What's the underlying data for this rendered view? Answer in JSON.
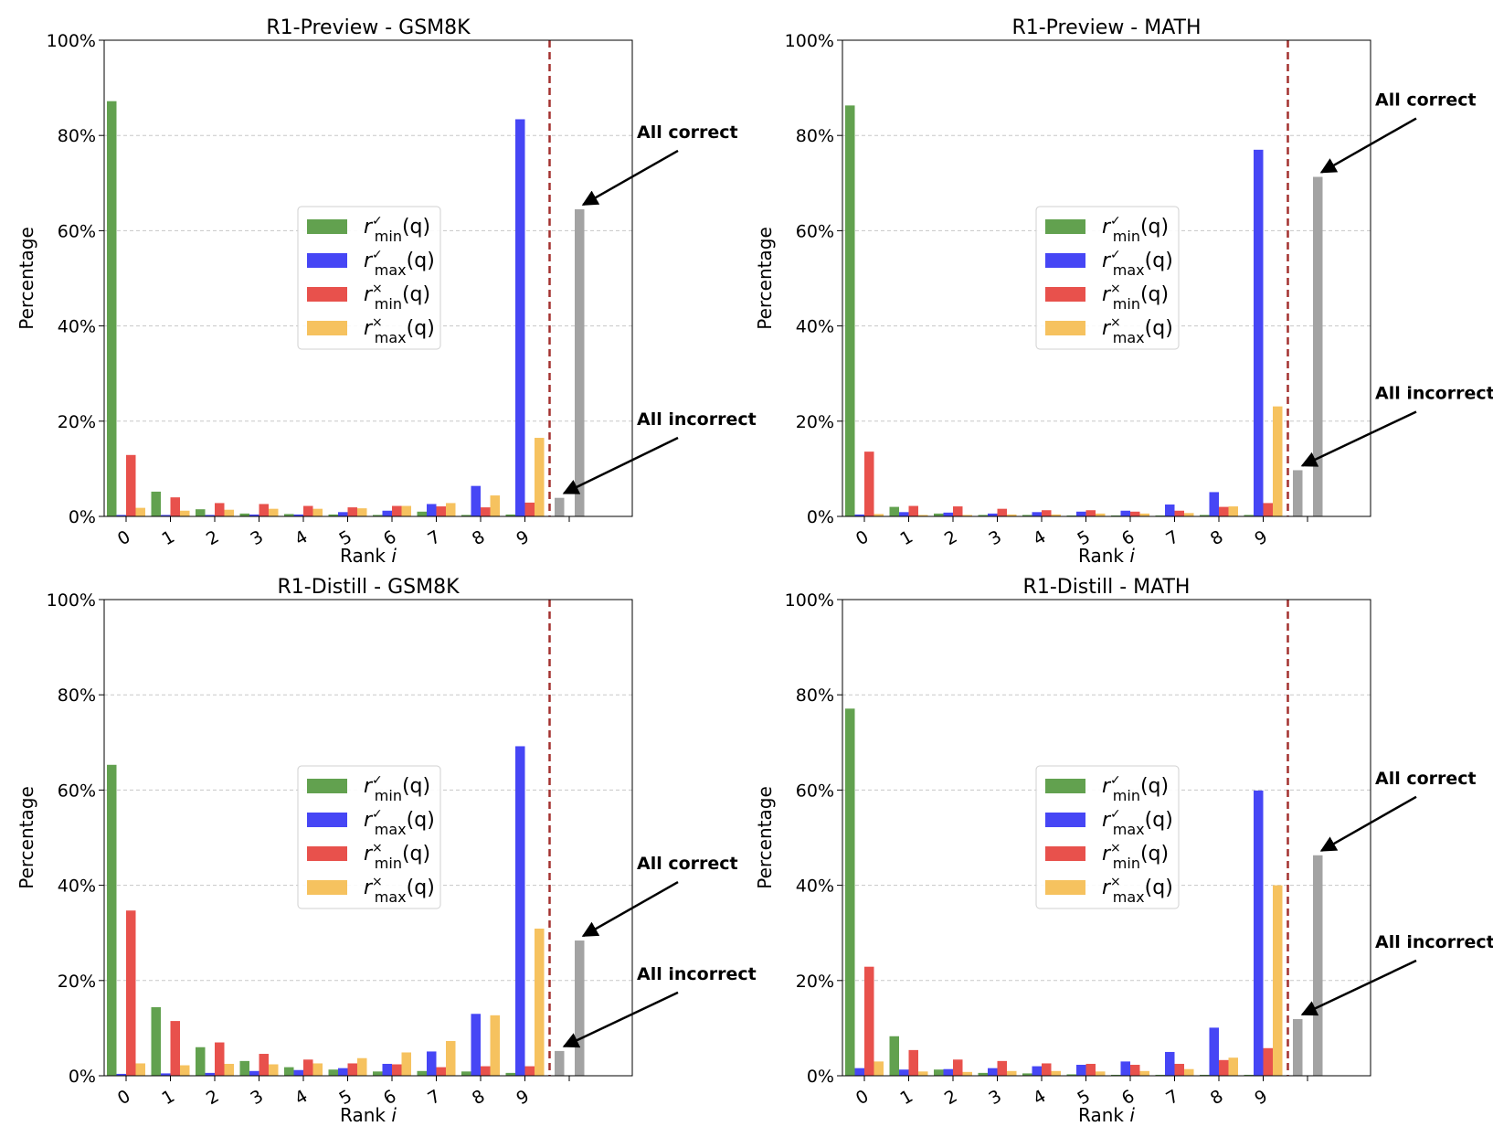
{
  "legend_labels": {
    "min_correct": {
      "base": "r",
      "sup": "✓",
      "sub": "min",
      "arg": "(q)"
    },
    "max_correct": {
      "base": "r",
      "sup": "✓",
      "sub": "max",
      "arg": "(q)"
    },
    "min_incorrect": {
      "base": "r",
      "sup": "×",
      "sub": "min",
      "arg": "(q)"
    },
    "max_incorrect": {
      "base": "r",
      "sup": "×",
      "sub": "max",
      "arg": "(q)"
    }
  },
  "colors": {
    "min_correct": "#62a14f",
    "max_correct": "#4646f5",
    "min_incorrect": "#e8514c",
    "max_incorrect": "#f6c25f",
    "summary": "#a3a3a3",
    "divider": "#a3312f"
  },
  "chart_data": [
    {
      "type": "bar",
      "title": "R1-Preview - GSM8K",
      "xlabel": "Rank i",
      "ylabel": "Percentage",
      "ylim": [
        0,
        100
      ],
      "yticks": [
        "0%",
        "20%",
        "40%",
        "60%",
        "80%",
        "100%"
      ],
      "categories": [
        "0",
        "1",
        "2",
        "3",
        "4",
        "5",
        "6",
        "7",
        "8",
        "9"
      ],
      "series": [
        {
          "key": "min_correct",
          "values": [
            87.2,
            5.2,
            1.5,
            0.6,
            0.5,
            0.4,
            0.3,
            1.0,
            0.3,
            0.4
          ]
        },
        {
          "key": "max_correct",
          "values": [
            0.3,
            0.3,
            0.3,
            0.4,
            0.4,
            0.9,
            1.2,
            2.6,
            6.4,
            83.4
          ]
        },
        {
          "key": "min_incorrect",
          "values": [
            12.9,
            4.0,
            2.8,
            2.6,
            2.2,
            1.9,
            2.2,
            2.1,
            1.9,
            2.9
          ]
        },
        {
          "key": "max_incorrect",
          "values": [
            1.8,
            1.2,
            1.4,
            1.6,
            1.6,
            1.7,
            2.2,
            2.8,
            4.4,
            16.5
          ]
        }
      ],
      "summary": {
        "all_incorrect": 3.9,
        "all_correct": 64.5
      },
      "annotations": {
        "all_correct": "All correct",
        "all_incorrect": "All incorrect"
      },
      "legend_position": "center"
    },
    {
      "type": "bar",
      "title": "R1-Preview - MATH",
      "xlabel": "Rank i",
      "ylabel": "Percentage",
      "ylim": [
        0,
        100
      ],
      "yticks": [
        "0%",
        "20%",
        "40%",
        "60%",
        "80%",
        "100%"
      ],
      "categories": [
        "0",
        "1",
        "2",
        "3",
        "4",
        "5",
        "6",
        "7",
        "8",
        "9"
      ],
      "series": [
        {
          "key": "min_correct",
          "values": [
            86.3,
            2.0,
            0.6,
            0.3,
            0.3,
            0.2,
            0.2,
            0.2,
            0.3,
            0.3
          ]
        },
        {
          "key": "max_correct",
          "values": [
            0.4,
            0.9,
            0.8,
            0.6,
            0.9,
            1.0,
            1.2,
            2.5,
            5.1,
            77.0
          ]
        },
        {
          "key": "min_incorrect",
          "values": [
            13.6,
            2.2,
            2.1,
            1.6,
            1.3,
            1.3,
            1.0,
            1.2,
            2.0,
            2.8
          ]
        },
        {
          "key": "max_incorrect",
          "values": [
            0.5,
            0.3,
            0.3,
            0.4,
            0.4,
            0.6,
            0.6,
            0.7,
            2.1,
            23.1
          ]
        }
      ],
      "summary": {
        "all_incorrect": 9.7,
        "all_correct": 71.3
      },
      "annotations": {
        "all_correct": "All correct",
        "all_incorrect": "All incorrect"
      },
      "legend_position": "center"
    },
    {
      "type": "bar",
      "title": "R1-Distill - GSM8K",
      "xlabel": "Rank i",
      "ylabel": "Percentage",
      "ylim": [
        0,
        100
      ],
      "yticks": [
        "0%",
        "20%",
        "40%",
        "60%",
        "80%",
        "100%"
      ],
      "categories": [
        "0",
        "1",
        "2",
        "3",
        "4",
        "5",
        "6",
        "7",
        "8",
        "9"
      ],
      "series": [
        {
          "key": "min_correct",
          "values": [
            65.3,
            14.4,
            6.0,
            3.1,
            1.8,
            1.3,
            0.9,
            1.0,
            0.9,
            0.6
          ]
        },
        {
          "key": "max_correct",
          "values": [
            0.4,
            0.5,
            0.6,
            1.0,
            1.2,
            1.6,
            2.5,
            5.1,
            13.0,
            69.2
          ]
        },
        {
          "key": "min_incorrect",
          "values": [
            34.7,
            11.5,
            7.0,
            4.6,
            3.4,
            2.6,
            2.4,
            1.8,
            2.0,
            2.0
          ]
        },
        {
          "key": "max_incorrect",
          "values": [
            2.6,
            2.2,
            2.5,
            2.4,
            2.6,
            3.7,
            4.9,
            7.3,
            12.7,
            30.9
          ]
        }
      ],
      "summary": {
        "all_incorrect": 5.2,
        "all_correct": 28.4
      },
      "annotations": {
        "all_correct": "All correct",
        "all_incorrect": "All incorrect"
      },
      "legend_position": "center"
    },
    {
      "type": "bar",
      "title": "R1-Distill - MATH",
      "xlabel": "Rank i",
      "ylabel": "Percentage",
      "ylim": [
        0,
        100
      ],
      "yticks": [
        "0%",
        "20%",
        "40%",
        "60%",
        "80%",
        "100%"
      ],
      "categories": [
        "0",
        "1",
        "2",
        "3",
        "4",
        "5",
        "6",
        "7",
        "8",
        "9"
      ],
      "series": [
        {
          "key": "min_correct",
          "values": [
            77.1,
            8.3,
            1.3,
            0.6,
            0.5,
            0.3,
            0.2,
            0.2,
            0.2,
            0.2
          ]
        },
        {
          "key": "max_correct",
          "values": [
            1.6,
            1.3,
            1.4,
            1.6,
            2.0,
            2.3,
            3.0,
            5.0,
            10.1,
            59.9
          ]
        },
        {
          "key": "min_incorrect",
          "values": [
            22.9,
            5.4,
            3.4,
            3.1,
            2.6,
            2.5,
            2.3,
            2.5,
            3.3,
            5.8
          ]
        },
        {
          "key": "max_incorrect",
          "values": [
            3.0,
            0.9,
            0.8,
            1.0,
            1.0,
            0.9,
            1.0,
            1.4,
            3.8,
            40.0
          ]
        }
      ],
      "summary": {
        "all_incorrect": 11.9,
        "all_correct": 46.3
      },
      "annotations": {
        "all_correct": "All correct",
        "all_incorrect": "All incorrect"
      },
      "legend_position": "center"
    }
  ]
}
